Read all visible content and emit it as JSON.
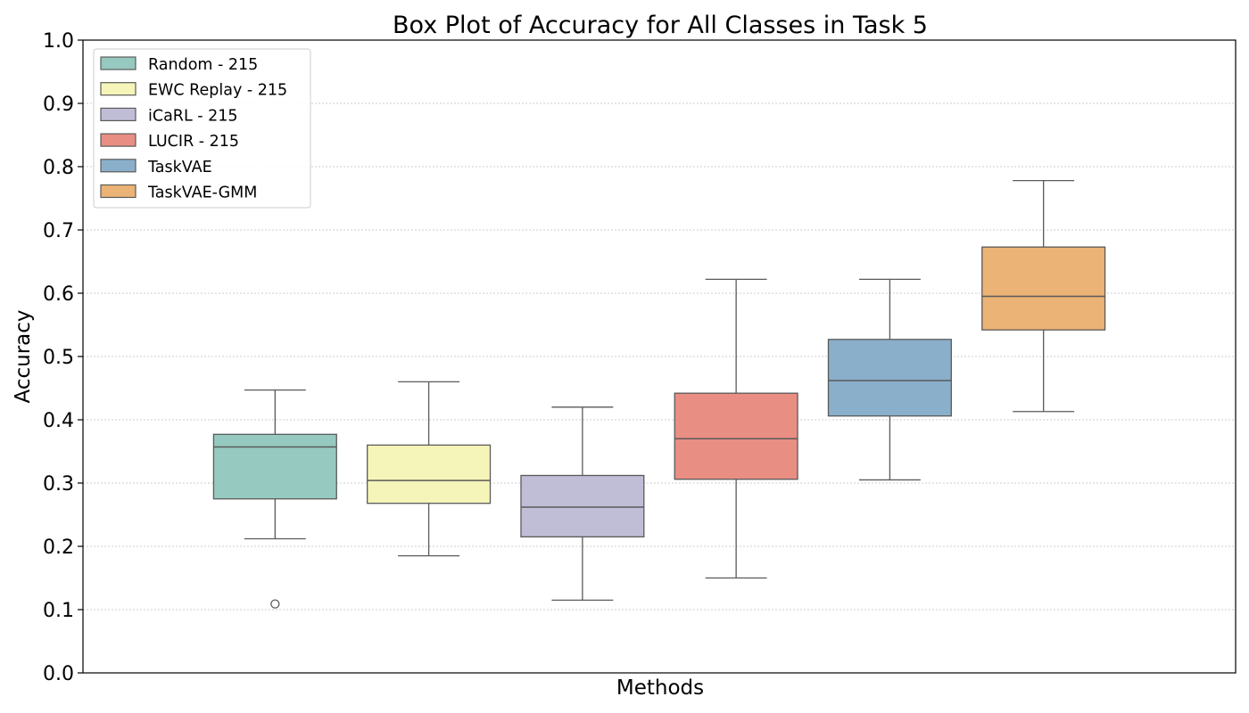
{
  "chart_data": {
    "type": "box",
    "title": "Box Plot of Accuracy for All Classes in Task 5",
    "xlabel": "Methods",
    "ylabel": "Accuracy",
    "ylim": [
      0.0,
      1.0
    ],
    "yticks": [
      "0.0",
      "0.1",
      "0.2",
      "0.3",
      "0.4",
      "0.5",
      "0.6",
      "0.7",
      "0.8",
      "0.9",
      "1.0"
    ],
    "grid": "y-dotted",
    "legend_position": "top-left",
    "series": [
      {
        "name": "Random - 215",
        "color": "#96c9c0",
        "whisker_low": 0.212,
        "q1": 0.275,
        "median": 0.357,
        "q3": 0.377,
        "whisker_high": 0.447,
        "outliers": [
          0.109
        ]
      },
      {
        "name": "EWC Replay - 215",
        "color": "#f6f5b9",
        "whisker_low": 0.185,
        "q1": 0.268,
        "median": 0.304,
        "q3": 0.36,
        "whisker_high": 0.46,
        "outliers": []
      },
      {
        "name": "iCaRL - 215",
        "color": "#c0bdd7",
        "whisker_low": 0.115,
        "q1": 0.215,
        "median": 0.262,
        "q3": 0.312,
        "whisker_high": 0.42,
        "outliers": []
      },
      {
        "name": "LUCIR - 215",
        "color": "#e98e83",
        "whisker_low": 0.15,
        "q1": 0.306,
        "median": 0.37,
        "q3": 0.442,
        "whisker_high": 0.622,
        "outliers": []
      },
      {
        "name": "TaskVAE",
        "color": "#8aafca",
        "whisker_low": 0.305,
        "q1": 0.406,
        "median": 0.462,
        "q3": 0.527,
        "whisker_high": 0.622,
        "outliers": []
      },
      {
        "name": "TaskVAE-GMM",
        "color": "#ebb376",
        "whisker_low": 0.413,
        "q1": 0.542,
        "median": 0.595,
        "q3": 0.673,
        "whisker_high": 0.778,
        "outliers": []
      }
    ]
  }
}
